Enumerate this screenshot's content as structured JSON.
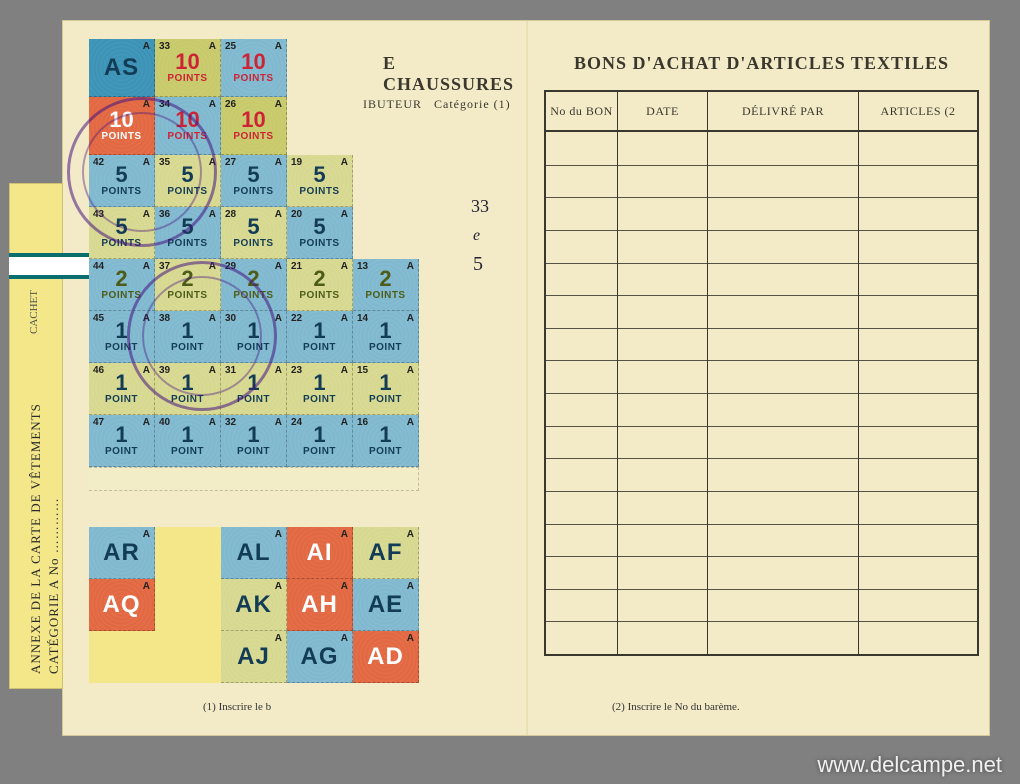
{
  "background_color": "#808080",
  "card_color": "#f3ebc7",
  "sidebar": {
    "line1": "ANNEXE DE LA CARTE DE VÊTEMENTS",
    "line2": "CATÉGORIE A  No …………",
    "cachet": "CACHET"
  },
  "left": {
    "title_fragment": "E  CHAUSSURES",
    "header_distributor": "IBUTEUR",
    "header_category": "Catégorie (1)",
    "handwritten1": "33",
    "handwritten2": "e",
    "handwritten3": "5",
    "footnote": "(1) Inscrire le b"
  },
  "right": {
    "title": "BONS D'ACHAT D'ARTICLES TEXTILES",
    "columns": [
      "No du BON",
      "DATE",
      "DÉLIVRÉ PAR",
      "ARTICLES (2"
    ],
    "row_count": 16,
    "footnote": "(2) Inscrire le No du barème."
  },
  "watermark": "www.delcampe.net",
  "points_label_single": "POINT",
  "points_label_plural": "POINTS",
  "stamp_rows": [
    [
      {
        "num": "",
        "letter": "A",
        "value": "",
        "code": "AS",
        "bg": "bg-blue",
        "txt": "txt-navy",
        "type": "code"
      },
      {
        "num": "33",
        "letter": "A",
        "value": "10",
        "bg": "bg-olive",
        "txt": "txt-red",
        "type": "pts"
      },
      {
        "num": "25",
        "letter": "A",
        "value": "10",
        "bg": "bg-blueL",
        "txt": "txt-red",
        "type": "pts"
      }
    ],
    [
      {
        "num": "",
        "letter": "",
        "value": "10",
        "bg": "bg-red",
        "txt": "",
        "type": "pts"
      },
      {
        "num": "34",
        "letter": "A",
        "value": "10",
        "bg": "bg-blueL",
        "txt": "txt-red",
        "type": "pts"
      },
      {
        "num": "26",
        "letter": "A",
        "value": "10",
        "bg": "bg-olive",
        "txt": "txt-red",
        "type": "pts"
      }
    ],
    [
      {
        "num": "42",
        "letter": "A",
        "value": "5",
        "bg": "bg-blueL",
        "txt": "txt-navy",
        "type": "pts"
      },
      {
        "num": "35",
        "letter": "A",
        "value": "5",
        "bg": "bg-oliveL",
        "txt": "txt-navy",
        "type": "pts"
      },
      {
        "num": "27",
        "letter": "A",
        "value": "5",
        "bg": "bg-blueL",
        "txt": "txt-navy",
        "type": "pts"
      },
      {
        "num": "19",
        "letter": "A",
        "value": "5",
        "bg": "bg-oliveL",
        "txt": "txt-navy",
        "type": "pts"
      }
    ],
    [
      {
        "num": "43",
        "letter": "A",
        "value": "5",
        "bg": "bg-oliveL",
        "txt": "txt-navy",
        "type": "pts"
      },
      {
        "num": "36",
        "letter": "A",
        "value": "5",
        "bg": "bg-blueL",
        "txt": "txt-navy",
        "type": "pts"
      },
      {
        "num": "28",
        "letter": "A",
        "value": "5",
        "bg": "bg-oliveL",
        "txt": "txt-navy",
        "type": "pts"
      },
      {
        "num": "20",
        "letter": "A",
        "value": "5",
        "bg": "bg-blueL",
        "txt": "txt-navy",
        "type": "pts"
      }
    ],
    [
      {
        "num": "44",
        "letter": "A",
        "value": "2",
        "bg": "bg-blueL",
        "txt": "txt-olive",
        "type": "pts"
      },
      {
        "num": "37",
        "letter": "A",
        "value": "2",
        "bg": "bg-oliveL",
        "txt": "txt-olive",
        "type": "pts"
      },
      {
        "num": "29",
        "letter": "A",
        "value": "2",
        "bg": "bg-blueL",
        "txt": "txt-olive",
        "type": "pts"
      },
      {
        "num": "21",
        "letter": "A",
        "value": "2",
        "bg": "bg-oliveL",
        "txt": "txt-olive",
        "type": "pts"
      },
      {
        "num": "13",
        "letter": "A",
        "value": "2",
        "bg": "bg-blueL",
        "txt": "txt-olive",
        "type": "pts"
      }
    ],
    [
      {
        "num": "45",
        "letter": "A",
        "value": "1",
        "bg": "bg-blueL",
        "txt": "txt-navy",
        "type": "pt"
      },
      {
        "num": "38",
        "letter": "A",
        "value": "1",
        "bg": "bg-blueL",
        "txt": "txt-navy",
        "type": "pt"
      },
      {
        "num": "30",
        "letter": "A",
        "value": "1",
        "bg": "bg-blueL",
        "txt": "txt-navy",
        "type": "pt"
      },
      {
        "num": "22",
        "letter": "A",
        "value": "1",
        "bg": "bg-blueL",
        "txt": "txt-navy",
        "type": "pt"
      },
      {
        "num": "14",
        "letter": "A",
        "value": "1",
        "bg": "bg-blueL",
        "txt": "txt-navy",
        "type": "pt"
      }
    ],
    [
      {
        "num": "46",
        "letter": "A",
        "value": "1",
        "bg": "bg-oliveL",
        "txt": "txt-navy",
        "type": "pt"
      },
      {
        "num": "39",
        "letter": "A",
        "value": "1",
        "bg": "bg-oliveL",
        "txt": "txt-navy",
        "type": "pt"
      },
      {
        "num": "31",
        "letter": "A",
        "value": "1",
        "bg": "bg-oliveL",
        "txt": "txt-navy",
        "type": "pt"
      },
      {
        "num": "23",
        "letter": "A",
        "value": "1",
        "bg": "bg-oliveL",
        "txt": "txt-navy",
        "type": "pt"
      },
      {
        "num": "15",
        "letter": "A",
        "value": "1",
        "bg": "bg-oliveL",
        "txt": "txt-navy",
        "type": "pt"
      }
    ],
    [
      {
        "num": "47",
        "letter": "A",
        "value": "1",
        "bg": "bg-blueL",
        "txt": "txt-navy",
        "type": "pt"
      },
      {
        "num": "40",
        "letter": "A",
        "value": "1",
        "bg": "bg-blueL",
        "txt": "txt-navy",
        "type": "pt"
      },
      {
        "num": "32",
        "letter": "A",
        "value": "1",
        "bg": "bg-blueL",
        "txt": "txt-navy",
        "type": "pt"
      },
      {
        "num": "24",
        "letter": "A",
        "value": "1",
        "bg": "bg-blueL",
        "txt": "txt-navy",
        "type": "pt"
      },
      {
        "num": "16",
        "letter": "A",
        "value": "1",
        "bg": "bg-blueL",
        "txt": "txt-navy",
        "type": "pt"
      }
    ]
  ],
  "letter_rows": [
    [
      {
        "code": "AR",
        "bg": "bg-blueL",
        "txt": "txt-navy"
      },
      {
        "type": "missing"
      },
      {
        "code": "AL",
        "bg": "bg-blueL",
        "txt": "txt-navy"
      },
      {
        "code": "AI",
        "bg": "bg-red",
        "txt": ""
      },
      {
        "code": "AF",
        "bg": "bg-oliveL",
        "txt": "txt-navy"
      }
    ],
    [
      {
        "code": "AQ",
        "bg": "bg-red",
        "txt": ""
      },
      {
        "type": "missing"
      },
      {
        "code": "AK",
        "bg": "bg-oliveL",
        "txt": "txt-navy"
      },
      {
        "code": "AH",
        "bg": "bg-red",
        "txt": ""
      },
      {
        "code": "AE",
        "bg": "bg-blueL",
        "txt": "txt-navy"
      }
    ],
    [
      {
        "type": "missing"
      },
      {
        "type": "missing"
      },
      {
        "code": "AJ",
        "bg": "bg-oliveL",
        "txt": "txt-navy"
      },
      {
        "code": "AG",
        "bg": "bg-blueL",
        "txt": "txt-navy"
      },
      {
        "code": "AD",
        "bg": "bg-red",
        "txt": ""
      }
    ]
  ]
}
